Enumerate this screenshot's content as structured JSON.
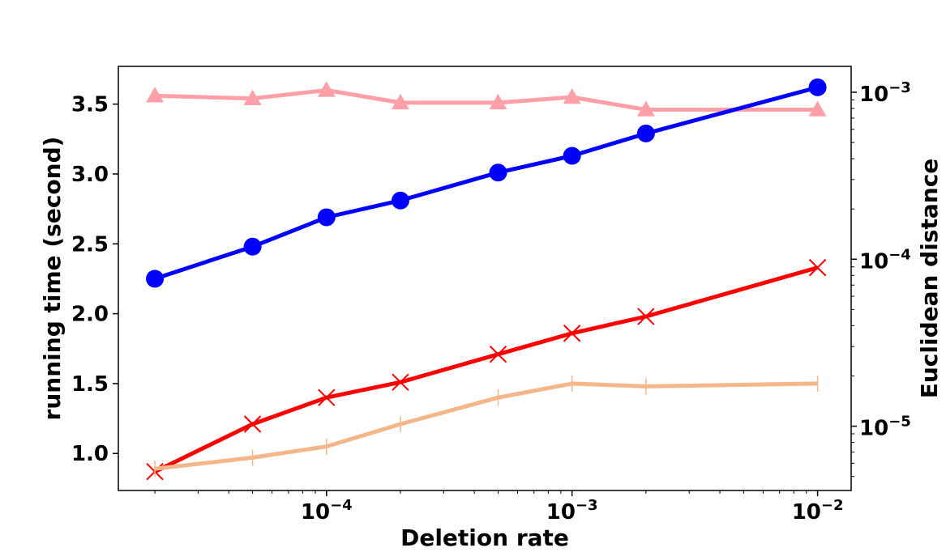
{
  "chart_data": {
    "type": "line",
    "title": "",
    "xlabel": "Deletion rate",
    "ylabel_left": "running time (second)",
    "ylabel_right": "Euclidean distance",
    "x_scale": "log",
    "xlim": [
      1.42e-05,
      0.0137
    ],
    "ylim_left": [
      0.735,
      3.77
    ],
    "ylim_right_log10": [
      -5.385,
      -2.845
    ],
    "x_ticks": [
      0.0001,
      0.001,
      0.01
    ],
    "x_tick_labels": [
      {
        "base": "10",
        "exp": "−4"
      },
      {
        "base": "10",
        "exp": "−3"
      },
      {
        "base": "10",
        "exp": "−2"
      }
    ],
    "y_left_ticks": [
      1.0,
      1.5,
      2.0,
      2.5,
      3.0,
      3.5
    ],
    "y_left_tick_labels": [
      "1.0",
      "1.5",
      "2.0",
      "2.5",
      "3.0",
      "3.5"
    ],
    "y_right_ticks": [
      1e-05,
      0.0001,
      0.001
    ],
    "y_right_tick_labels": [
      {
        "base": "10",
        "exp": "−5"
      },
      {
        "base": "10",
        "exp": "−4"
      },
      {
        "base": "10",
        "exp": "−3"
      }
    ],
    "x": [
      2e-05,
      5e-05,
      0.0001,
      0.0002,
      0.0005,
      0.001,
      0.002,
      0.01
    ],
    "series": [
      {
        "axis": "left",
        "color": "#ffa0a8",
        "marker": "triangle",
        "values": [
          3.56,
          3.54,
          3.6,
          3.51,
          3.51,
          3.55,
          3.46,
          3.46
        ]
      },
      {
        "axis": "left",
        "color": "#0000ff",
        "marker": "circle",
        "values": [
          2.25,
          2.48,
          2.69,
          2.81,
          3.01,
          3.13,
          3.29,
          3.62
        ]
      },
      {
        "axis": "left",
        "color": "#ff0000",
        "marker": "x",
        "values": [
          0.87,
          1.21,
          1.4,
          1.51,
          1.71,
          1.86,
          1.98,
          2.33
        ]
      },
      {
        "axis": "left",
        "color": "#f5b68a",
        "marker": "vline",
        "values": [
          0.89,
          0.97,
          1.05,
          1.21,
          1.4,
          1.5,
          1.48,
          1.5
        ]
      }
    ]
  }
}
